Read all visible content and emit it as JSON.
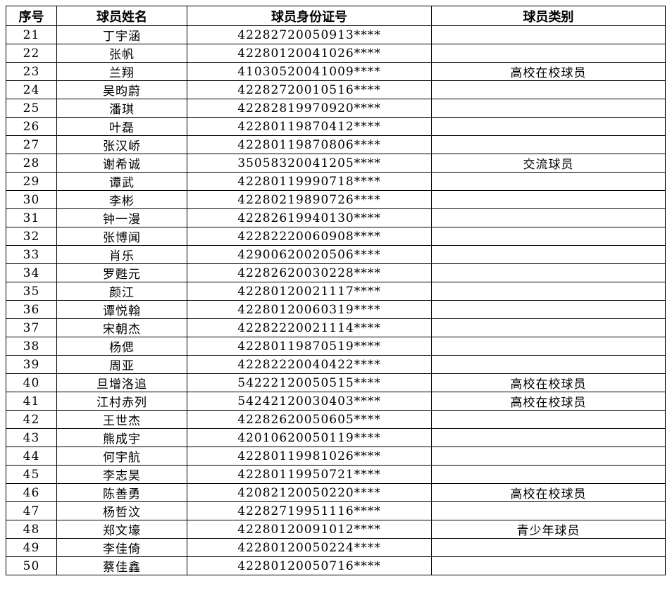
{
  "table": {
    "headers": [
      "序号",
      "球员姓名",
      "球员身份证号",
      "球员类别"
    ],
    "rows": [
      [
        21,
        "丁宇涵",
        "42282720050913****"
      ],
      [
        22,
        "张帆",
        "42280120041026****"
      ],
      [
        23,
        "兰翔",
        "41030520041009****",
        "高校在校球员"
      ],
      [
        24,
        "吴昀蔚",
        "42282720010516****"
      ],
      [
        25,
        "潘琪",
        "42282819970920****"
      ],
      [
        26,
        "叶磊",
        "42280119870412****"
      ],
      [
        27,
        "张汉峤",
        "42280119870806****"
      ],
      [
        28,
        "谢希诚",
        "35058320041205****",
        "交流球员"
      ],
      [
        29,
        "谭武",
        "42280119990718****"
      ],
      [
        30,
        "李彬",
        "42280219890726****"
      ],
      [
        31,
        "钟一漫",
        "42282619940130****"
      ],
      [
        32,
        "张博闻",
        "42282220060908****"
      ],
      [
        33,
        "肖乐",
        "42900620020506****"
      ],
      [
        34,
        "罗甦元",
        "42282620030228****"
      ],
      [
        35,
        "颜江",
        "42280120021117****"
      ],
      [
        36,
        "谭悦翰",
        "42280120060319****"
      ],
      [
        37,
        "宋朝杰",
        "42282220021114****"
      ],
      [
        38,
        "杨偲",
        "42280119870519****"
      ],
      [
        39,
        "周亚",
        "42282220040422****"
      ],
      [
        40,
        "旦增洛追",
        "54222120050515****",
        "高校在校球员"
      ],
      [
        41,
        "江村赤列",
        "54242120030403****",
        "高校在校球员"
      ],
      [
        42,
        "王世杰",
        "42282620050605****"
      ],
      [
        43,
        "熊成宇",
        "42010620050119****"
      ],
      [
        44,
        "何宇航",
        "42280119981026****"
      ],
      [
        45,
        "李志昊",
        "42280119950721****"
      ],
      [
        46,
        "陈善勇",
        "42082120050220****",
        "高校在校球员"
      ],
      [
        47,
        "杨哲汶",
        "42282719951116****"
      ],
      [
        48,
        "郑文壕",
        "42280120091012****",
        "青少年球员"
      ],
      [
        49,
        "李佳倚",
        "42280120050224****"
      ],
      [
        50,
        "蔡佳鑫",
        "42280120050716****"
      ]
    ]
  }
}
